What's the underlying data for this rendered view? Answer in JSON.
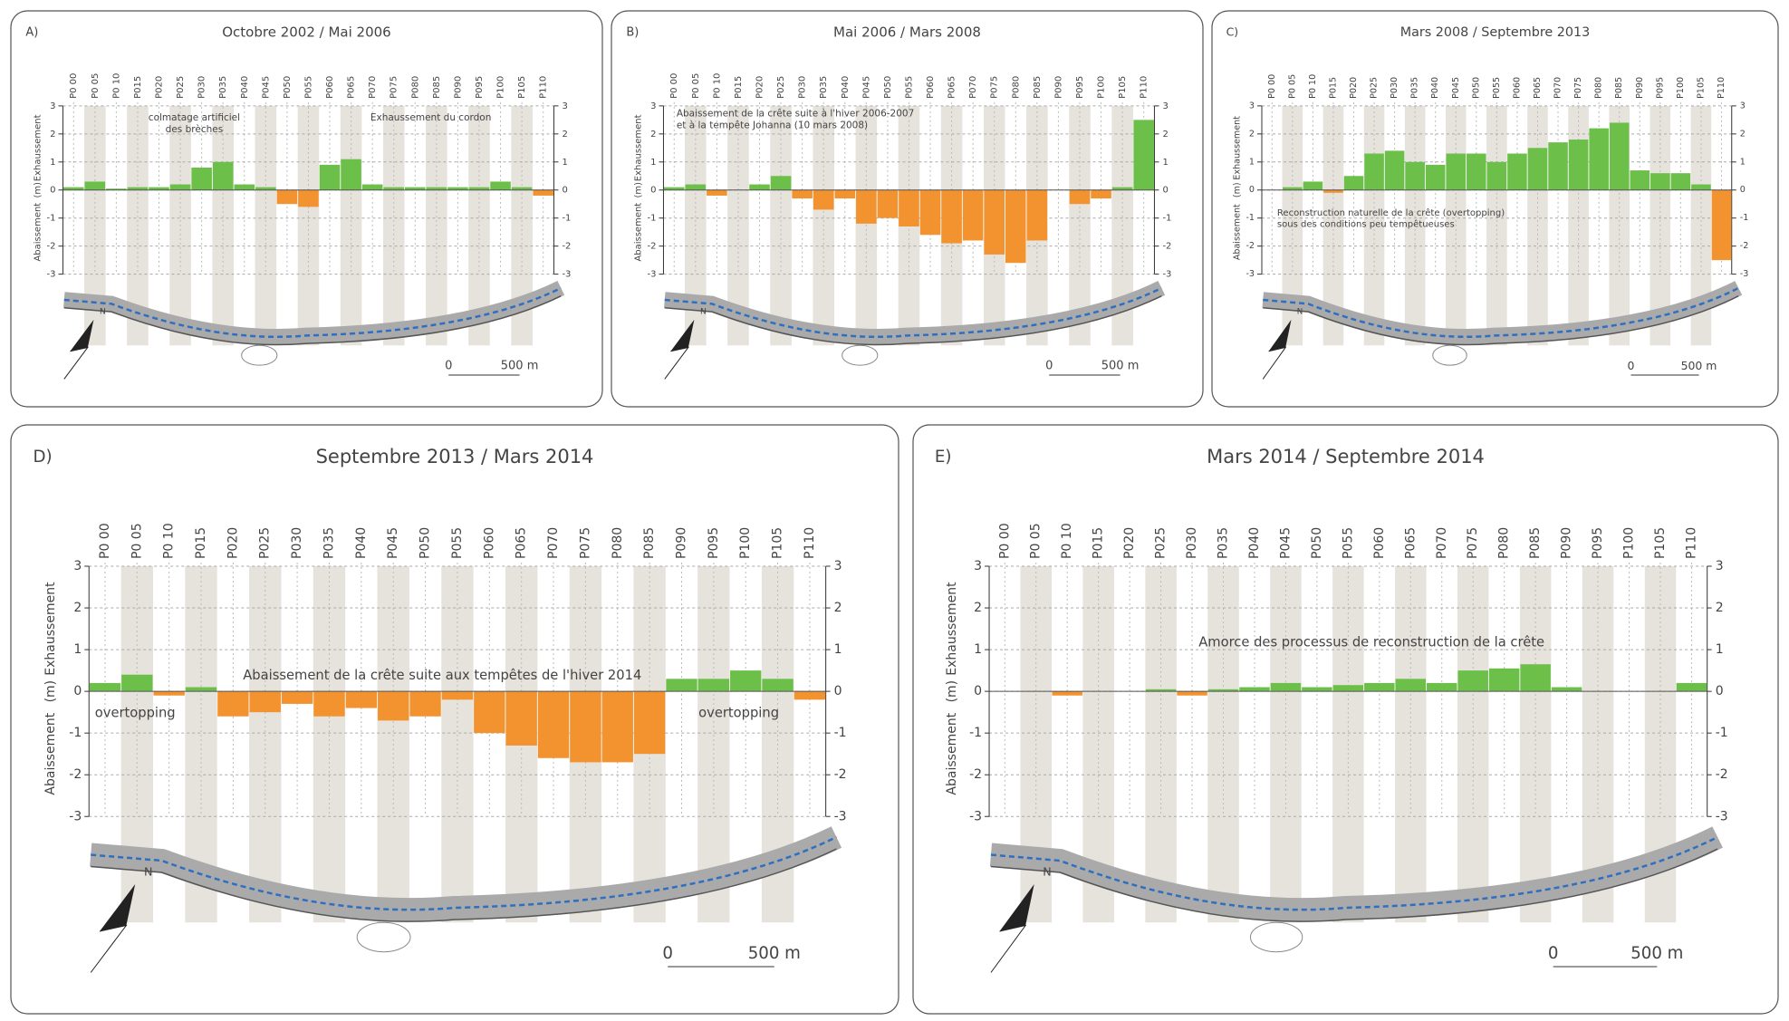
{
  "chart_data": [
    {
      "type": "bar",
      "label": "A)",
      "title": "Octobre 2002 / Mai 2006",
      "categories": [
        "P0 00",
        "P0 05",
        "P0 10",
        "P015",
        "P020",
        "P025",
        "P030",
        "P035",
        "P040",
        "P045",
        "P050",
        "P055",
        "P060",
        "P065",
        "P070",
        "P075",
        "P080",
        "P085",
        "P090",
        "P095",
        "P100",
        "P105",
        "P110"
      ],
      "values": [
        0.1,
        0.3,
        0.05,
        0.1,
        0.1,
        0.2,
        0.8,
        1.0,
        0.2,
        0.1,
        -0.5,
        -0.6,
        0.9,
        1.1,
        0.2,
        0.1,
        0.1,
        0.1,
        0.1,
        0.1,
        0.3,
        0.1,
        -0.2
      ],
      "color": "#6cc04a",
      "negative_color": "#f39330",
      "ylim": [
        -3,
        3
      ],
      "yticks": [
        -3,
        -2,
        -1,
        0,
        1,
        2,
        3
      ],
      "y2lim": [
        -3,
        3
      ],
      "y2ticks": [
        -3,
        -2,
        -1,
        0,
        1,
        2,
        3
      ],
      "ylabel_low": "Abaissement",
      "ylabel_unit": "(m)",
      "ylabel_high": "Exhaussement",
      "annotations": [
        {
          "lines": [
            "colmatage artificiel",
            "des brèches"
          ],
          "color": "#2aa36b"
        },
        {
          "lines": [
            "Exhaussement du cordon"
          ],
          "color": "#2aa36b"
        }
      ],
      "north": "N",
      "scalebar": [
        "0",
        "500 m"
      ]
    },
    {
      "type": "bar",
      "label": "B)",
      "title": "Mai 2006 / Mars 2008",
      "categories": [
        "P0 00",
        "P0 05",
        "P0 10",
        "P015",
        "P020",
        "P025",
        "P030",
        "P035",
        "P040",
        "P045",
        "P050",
        "P055",
        "P060",
        "P065",
        "P070",
        "P075",
        "P080",
        "P085",
        "P090",
        "P095",
        "P100",
        "P105",
        "P110"
      ],
      "values": [
        0.1,
        0.2,
        -0.2,
        0,
        0.2,
        0.5,
        -0.3,
        -0.7,
        -0.3,
        -1.2,
        -1.0,
        -1.3,
        -1.6,
        -1.9,
        -1.8,
        -2.3,
        -2.6,
        -1.8,
        0,
        -0.5,
        -0.3,
        0.1,
        2.5
      ],
      "color": "#6cc04a",
      "negative_color": "#f39330",
      "ylim": [
        -3,
        3
      ],
      "yticks": [
        -3,
        -2,
        -1,
        0,
        1,
        2,
        3
      ],
      "y2lim": [
        -3,
        3
      ],
      "y2ticks": [
        -3,
        -2,
        -1,
        0,
        1,
        2,
        3
      ],
      "ylabel_low": "Abaissement",
      "ylabel_unit": "(m)",
      "ylabel_high": "Exhaussement",
      "annotations": [
        {
          "lines": [
            "Abaissement de la crête suite à l'hiver 2006-2007",
            "et à la tempête Johanna (10 mars 2008)"
          ],
          "color": "#b0303a"
        }
      ],
      "north": "N",
      "scalebar": [
        "0",
        "500 m"
      ]
    },
    {
      "type": "bar",
      "label": "C)",
      "title": "Mars 2008 / Septembre 2013",
      "categories": [
        "P0 00",
        "P0 05",
        "P0 10",
        "P015",
        "P020",
        "P025",
        "P030",
        "P035",
        "P040",
        "P045",
        "P050",
        "P055",
        "P060",
        "P065",
        "P070",
        "P075",
        "P080",
        "P085",
        "P090",
        "P095",
        "P100",
        "P105",
        "P110"
      ],
      "values": [
        0,
        0.1,
        0.3,
        -0.1,
        0.5,
        1.3,
        1.4,
        1.0,
        0.9,
        1.3,
        1.3,
        1.0,
        1.3,
        1.5,
        1.7,
        1.8,
        2.2,
        2.4,
        0.7,
        0.6,
        0.6,
        0.2,
        -2.5
      ],
      "color": "#6cc04a",
      "negative_color": "#f39330",
      "ylim": [
        -3,
        3
      ],
      "yticks": [
        -3,
        -2,
        -1,
        0,
        1,
        2,
        3
      ],
      "y2lim": [
        -3,
        3
      ],
      "y2ticks": [
        -3,
        -2,
        -1,
        0,
        1,
        2,
        3
      ],
      "ylabel_low": "Abaissement",
      "ylabel_unit": "(m)",
      "ylabel_high": "Exhaussement",
      "annotations": [
        {
          "lines": [
            "Reconstruction naturelle de la crête (overtopping)",
            "sous des conditions peu tempêtueuses"
          ],
          "color": "#2aa36b"
        }
      ],
      "north": "N",
      "scalebar": [
        "0",
        "500 m"
      ]
    },
    {
      "type": "bar",
      "label": "D)",
      "title": "Septembre 2013 / Mars 2014",
      "categories": [
        "P0 00",
        "P0 05",
        "P0 10",
        "P015",
        "P020",
        "P025",
        "P030",
        "P035",
        "P040",
        "P045",
        "P050",
        "P055",
        "P060",
        "P065",
        "P070",
        "P075",
        "P080",
        "P085",
        "P090",
        "P095",
        "P100",
        "P105",
        "P110"
      ],
      "values": [
        0.2,
        0.4,
        -0.1,
        0.1,
        -0.6,
        -0.5,
        -0.3,
        -0.6,
        -0.4,
        -0.7,
        -0.6,
        -0.2,
        -1.0,
        -1.3,
        -1.6,
        -1.7,
        -1.7,
        -1.5,
        0.3,
        0.3,
        0.5,
        0.3,
        -0.2
      ],
      "color": "#6cc04a",
      "negative_color": "#f39330",
      "ylim": [
        -3,
        3
      ],
      "yticks": [
        -3,
        -2,
        -1,
        0,
        1,
        2,
        3
      ],
      "y2lim": [
        -3,
        3
      ],
      "y2ticks": [
        -3,
        -2,
        -1,
        0,
        1,
        2,
        3
      ],
      "ylabel_low": "Abaissement",
      "ylabel_unit": "(m)",
      "ylabel_high": "Exhaussement",
      "annotations": [
        {
          "lines": [
            "Abaissement de la crête suite aux tempêtes de l'hiver 2014"
          ],
          "color": "#b0303a"
        },
        {
          "lines": [
            "overtopping"
          ],
          "color": "#2aa36b"
        },
        {
          "lines": [
            "overtopping"
          ],
          "color": "#2aa36b"
        }
      ],
      "north": "N",
      "scalebar": [
        "0",
        "500 m"
      ]
    },
    {
      "type": "bar",
      "label": "E)",
      "title": "Mars 2014 / Septembre 2014",
      "categories": [
        "P0 00",
        "P0 05",
        "P0 10",
        "P015",
        "P020",
        "P025",
        "P030",
        "P035",
        "P040",
        "P045",
        "P050",
        "P055",
        "P060",
        "P065",
        "P070",
        "P075",
        "P080",
        "P085",
        "P090",
        "P095",
        "P100",
        "P105",
        "P110"
      ],
      "values": [
        0,
        0,
        -0.1,
        0,
        0,
        0.05,
        -0.1,
        0.05,
        0.1,
        0.2,
        0.1,
        0.15,
        0.2,
        0.3,
        0.2,
        0.5,
        0.55,
        0.65,
        0.1,
        0,
        0,
        0,
        0.2
      ],
      "color": "#6cc04a",
      "negative_color": "#f39330",
      "ylim": [
        -3,
        3
      ],
      "yticks": [
        -3,
        -2,
        -1,
        0,
        1,
        2,
        3
      ],
      "y2lim": [
        -3,
        3
      ],
      "y2ticks": [
        -3,
        -2,
        -1,
        0,
        1,
        2,
        3
      ],
      "ylabel_low": "Abaissement",
      "ylabel_unit": "(m)",
      "ylabel_high": "Exhaussement",
      "annotations": [
        {
          "lines": [
            "Amorce des processus de reconstruction de la crête"
          ],
          "color": "#2aa36b"
        }
      ],
      "north": "N",
      "scalebar": [
        "0",
        "500 m"
      ]
    }
  ]
}
